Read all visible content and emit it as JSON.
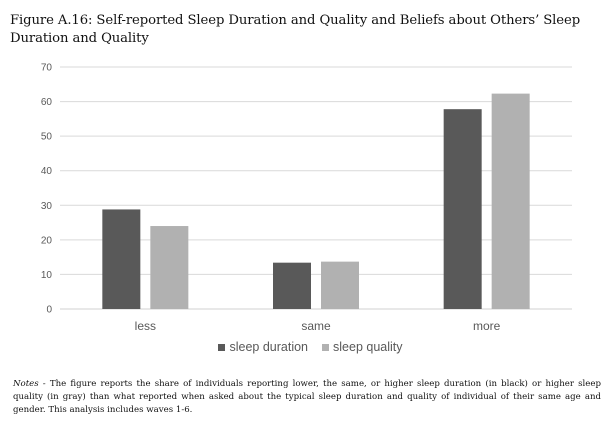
{
  "figure": {
    "title": "Figure A.16: Self-reported Sleep Duration and Quality and Beliefs about Others’ Sleep Duration and Quality",
    "notes_lead": "Notes -",
    "notes_text": "The figure reports the share of individuals reporting lower, the same, or higher sleep duration (in black) or higher sleep quality (in gray) than what reported when asked about the typical sleep duration and quality of individual of their same age and gender. This analysis includes waves 1-6."
  },
  "chart_data": {
    "type": "bar",
    "categories": [
      "less",
      "same",
      "more"
    ],
    "series": [
      {
        "name": "sleep duration",
        "values": [
          28.8,
          13.4,
          57.8
        ],
        "color": "#595959"
      },
      {
        "name": "sleep quality",
        "values": [
          24.0,
          13.7,
          62.3
        ],
        "color": "#b1b1b1"
      }
    ],
    "ylim": [
      0,
      70
    ],
    "yticks": [
      0,
      10,
      20,
      30,
      40,
      50,
      60,
      70
    ],
    "grid": true,
    "legend": "bottom-center",
    "gridColor": "#d9d9d9"
  }
}
